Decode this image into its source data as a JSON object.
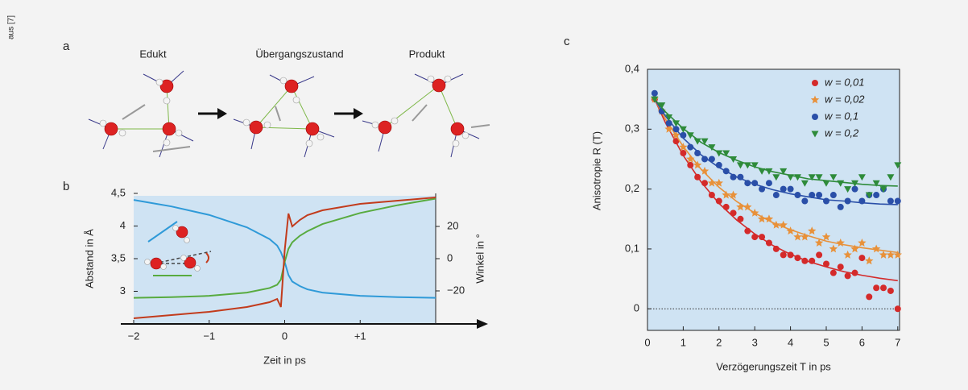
{
  "source": "aus [7]",
  "panel_a": {
    "label": "a",
    "states": [
      "Edukt",
      "Übergangszustand",
      "Produkt"
    ]
  },
  "chart_data": [
    {
      "type": "line",
      "label": "b",
      "xlabel": "Zeit in ps",
      "ylabel": "Abstand in Å",
      "y2label": "Winkel in °",
      "background": "#cfe3f3",
      "x": [
        -2,
        -1.5,
        -1,
        -0.5,
        -0.2,
        -0.1,
        -0.05,
        0,
        0.05,
        0.1,
        0.2,
        0.3,
        0.5,
        1,
        1.5,
        2
      ],
      "xlim": [
        -2,
        2
      ],
      "xticks": [
        {
          "value": -2,
          "label": "−2"
        },
        {
          "value": -1,
          "label": "−1"
        },
        0,
        {
          "value": 1,
          "label": "+1"
        }
      ],
      "ylim": [
        2.5,
        4.5
      ],
      "yticks": [
        3,
        {
          "value": 3.5,
          "label": "3,5"
        },
        4,
        {
          "value": 4.5,
          "label": "4,5"
        }
      ],
      "y2lim": [
        -40.5,
        40.5
      ],
      "y2ticks": [
        {
          "value": -20,
          "label": "−20"
        },
        0,
        20
      ],
      "series": [
        {
          "color": "#2f9ad8",
          "values": [
            4.4,
            4.3,
            4.17,
            3.98,
            3.8,
            3.7,
            3.6,
            3.45,
            3.25,
            3.15,
            3.08,
            3.03,
            2.98,
            2.93,
            2.91,
            2.9
          ]
        },
        {
          "color": "#58ab3f",
          "values": [
            2.9,
            2.91,
            2.93,
            2.98,
            3.05,
            3.1,
            3.18,
            3.45,
            3.65,
            3.75,
            3.85,
            3.92,
            4.03,
            4.2,
            4.32,
            4.42
          ]
        },
        {
          "color": "#c23b1c",
          "axis": "y2",
          "values": [
            -37,
            -35,
            -33,
            -30,
            -27,
            -25,
            -30,
            5,
            28,
            20,
            24,
            27,
            30,
            34,
            36,
            38
          ]
        }
      ]
    },
    {
      "type": "scatter",
      "label": "c",
      "xlabel": "Verzögerungszeit T in ps",
      "ylabel": "Anisotropie R (T)",
      "background": "#cfe3f3",
      "xlim": [
        0,
        7.05
      ],
      "xticks": [
        0,
        1,
        2,
        3,
        4,
        5,
        6,
        7
      ],
      "ylim": [
        -0.036,
        0.4
      ],
      "yticks": [
        0,
        {
          "value": 0.1,
          "label": "0,1"
        },
        {
          "value": 0.2,
          "label": "0,2"
        },
        {
          "value": 0.3,
          "label": "0,3"
        },
        {
          "value": 0.4,
          "label": "0,4"
        }
      ],
      "x": [
        0.2,
        0.4,
        0.6,
        0.8,
        1.0,
        1.2,
        1.4,
        1.6,
        1.8,
        2.0,
        2.2,
        2.4,
        2.6,
        2.8,
        3.0,
        3.2,
        3.4,
        3.6,
        3.8,
        4.0,
        4.2,
        4.4,
        4.6,
        4.8,
        5.0,
        5.2,
        5.4,
        5.6,
        5.8,
        6.0,
        6.2,
        6.4,
        6.6,
        6.8,
        7.0
      ],
      "fit_x": [
        0.2,
        0.5,
        1,
        1.5,
        2,
        2.5,
        3,
        3.5,
        4,
        4.5,
        5,
        5.5,
        6,
        6.5,
        7
      ],
      "series": [
        {
          "name": "w = 0,01",
          "color": "#d42a2a",
          "marker": "circle",
          "values": [
            0.35,
            0.33,
            0.31,
            0.28,
            0.26,
            0.24,
            0.22,
            0.21,
            0.19,
            0.18,
            0.17,
            0.16,
            0.15,
            0.13,
            0.12,
            0.12,
            0.11,
            0.1,
            0.09,
            0.09,
            0.085,
            0.08,
            0.08,
            0.09,
            0.075,
            0.06,
            0.07,
            0.055,
            0.06,
            0.085,
            0.02,
            0.035,
            0.035,
            0.03,
            0.0
          ],
          "fit": [
            0.35,
            0.311,
            0.256,
            0.212,
            0.176,
            0.148,
            0.125,
            0.106,
            0.091,
            0.079,
            0.07,
            0.062,
            0.056,
            0.051,
            0.047
          ]
        },
        {
          "name": "w = 0,02",
          "color": "#e8913a",
          "marker": "star",
          "values": [
            0.35,
            0.33,
            0.3,
            0.29,
            0.27,
            0.25,
            0.24,
            0.23,
            0.21,
            0.21,
            0.19,
            0.19,
            0.17,
            0.17,
            0.16,
            0.15,
            0.15,
            0.14,
            0.14,
            0.13,
            0.12,
            0.12,
            0.13,
            0.11,
            0.12,
            0.1,
            0.11,
            0.09,
            0.1,
            0.11,
            0.08,
            0.1,
            0.09,
            0.09,
            0.09
          ],
          "fit": [
            0.35,
            0.317,
            0.271,
            0.233,
            0.203,
            0.179,
            0.16,
            0.144,
            0.132,
            0.122,
            0.113,
            0.107,
            0.102,
            0.098,
            0.094
          ]
        },
        {
          "name": "w = 0,1",
          "color": "#2a4fa8",
          "marker": "circle",
          "values": [
            0.36,
            0.33,
            0.31,
            0.3,
            0.29,
            0.27,
            0.26,
            0.25,
            0.25,
            0.24,
            0.23,
            0.22,
            0.22,
            0.21,
            0.21,
            0.2,
            0.21,
            0.19,
            0.2,
            0.2,
            0.19,
            0.18,
            0.19,
            0.19,
            0.18,
            0.19,
            0.17,
            0.18,
            0.2,
            0.18,
            0.19,
            0.19,
            0.2,
            0.18,
            0.18
          ],
          "fit": [
            0.35,
            0.322,
            0.285,
            0.257,
            0.236,
            0.22,
            0.208,
            0.199,
            0.192,
            0.187,
            0.182,
            0.18,
            0.177,
            0.175,
            0.174
          ]
        },
        {
          "name": "w = 0,2",
          "color": "#2e8b3a",
          "marker": "triangle",
          "values": [
            0.35,
            0.34,
            0.32,
            0.31,
            0.3,
            0.29,
            0.28,
            0.28,
            0.27,
            0.26,
            0.26,
            0.25,
            0.24,
            0.24,
            0.24,
            0.23,
            0.23,
            0.22,
            0.23,
            0.22,
            0.22,
            0.21,
            0.22,
            0.22,
            0.21,
            0.22,
            0.21,
            0.2,
            0.21,
            0.22,
            0.19,
            0.21,
            0.2,
            0.22,
            0.24
          ],
          "fit": [
            0.35,
            0.329,
            0.301,
            0.278,
            0.261,
            0.248,
            0.237,
            0.229,
            0.223,
            0.217,
            0.214,
            0.211,
            0.208,
            0.206,
            0.205
          ]
        }
      ]
    }
  ]
}
